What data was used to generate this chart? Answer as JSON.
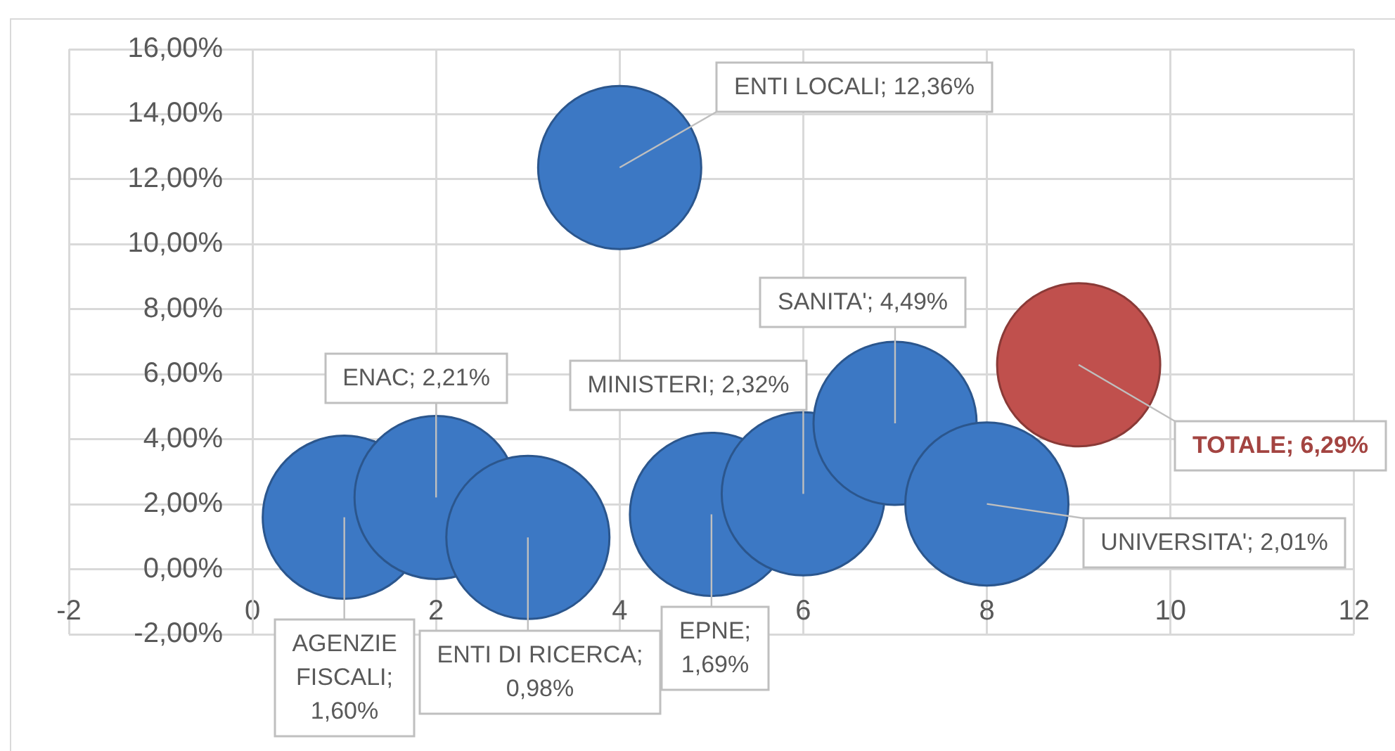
{
  "chart_data": {
    "type": "bubble",
    "series": [
      {
        "color": "#3c78c4",
        "x": [
          1,
          2,
          3,
          4,
          5,
          6,
          7,
          8
        ],
        "values": [
          1.6,
          2.21,
          0.98,
          12.36,
          1.69,
          2.32,
          4.49,
          2.01
        ],
        "sizes": [
          1,
          1,
          1,
          1,
          1,
          1,
          1,
          1
        ],
        "value_labels": [
          "AGENZIE FISCALI; 1,60%",
          "ENAC; 2,21%",
          "ENTI DI RICERCA; 0,98%",
          "ENTI LOCALI; 12,36%",
          "EPNE; 1,69%",
          "MINISTERI; 2,32%",
          "SANITA'; 4,49%",
          "UNIVERSITA'; 2,01%"
        ]
      },
      {
        "color": "#c0504d",
        "x": [
          9
        ],
        "values": [
          6.29
        ],
        "sizes": [
          1
        ],
        "value_labels": [
          "TOTALE; 6,29%"
        ]
      }
    ],
    "xlim": [
      -2,
      12
    ],
    "xticks": [
      -2,
      0,
      2,
      4,
      6,
      8,
      10,
      12
    ],
    "ylim": [
      -2,
      16
    ],
    "yticks": [
      {
        "value": -2,
        "label": "-2,00%"
      },
      {
        "value": 0,
        "label": "0,00%"
      },
      {
        "value": 2,
        "label": "2,00%"
      },
      {
        "value": 4,
        "label": "4,00%"
      },
      {
        "value": 6,
        "label": "6,00%"
      },
      {
        "value": 8,
        "label": "8,00%"
      },
      {
        "value": 10,
        "label": "10,00%"
      },
      {
        "value": 12,
        "label": "12,00%"
      },
      {
        "value": 14,
        "label": "14,00%"
      },
      {
        "value": 16,
        "label": "16,00%"
      }
    ],
    "grid": true
  }
}
